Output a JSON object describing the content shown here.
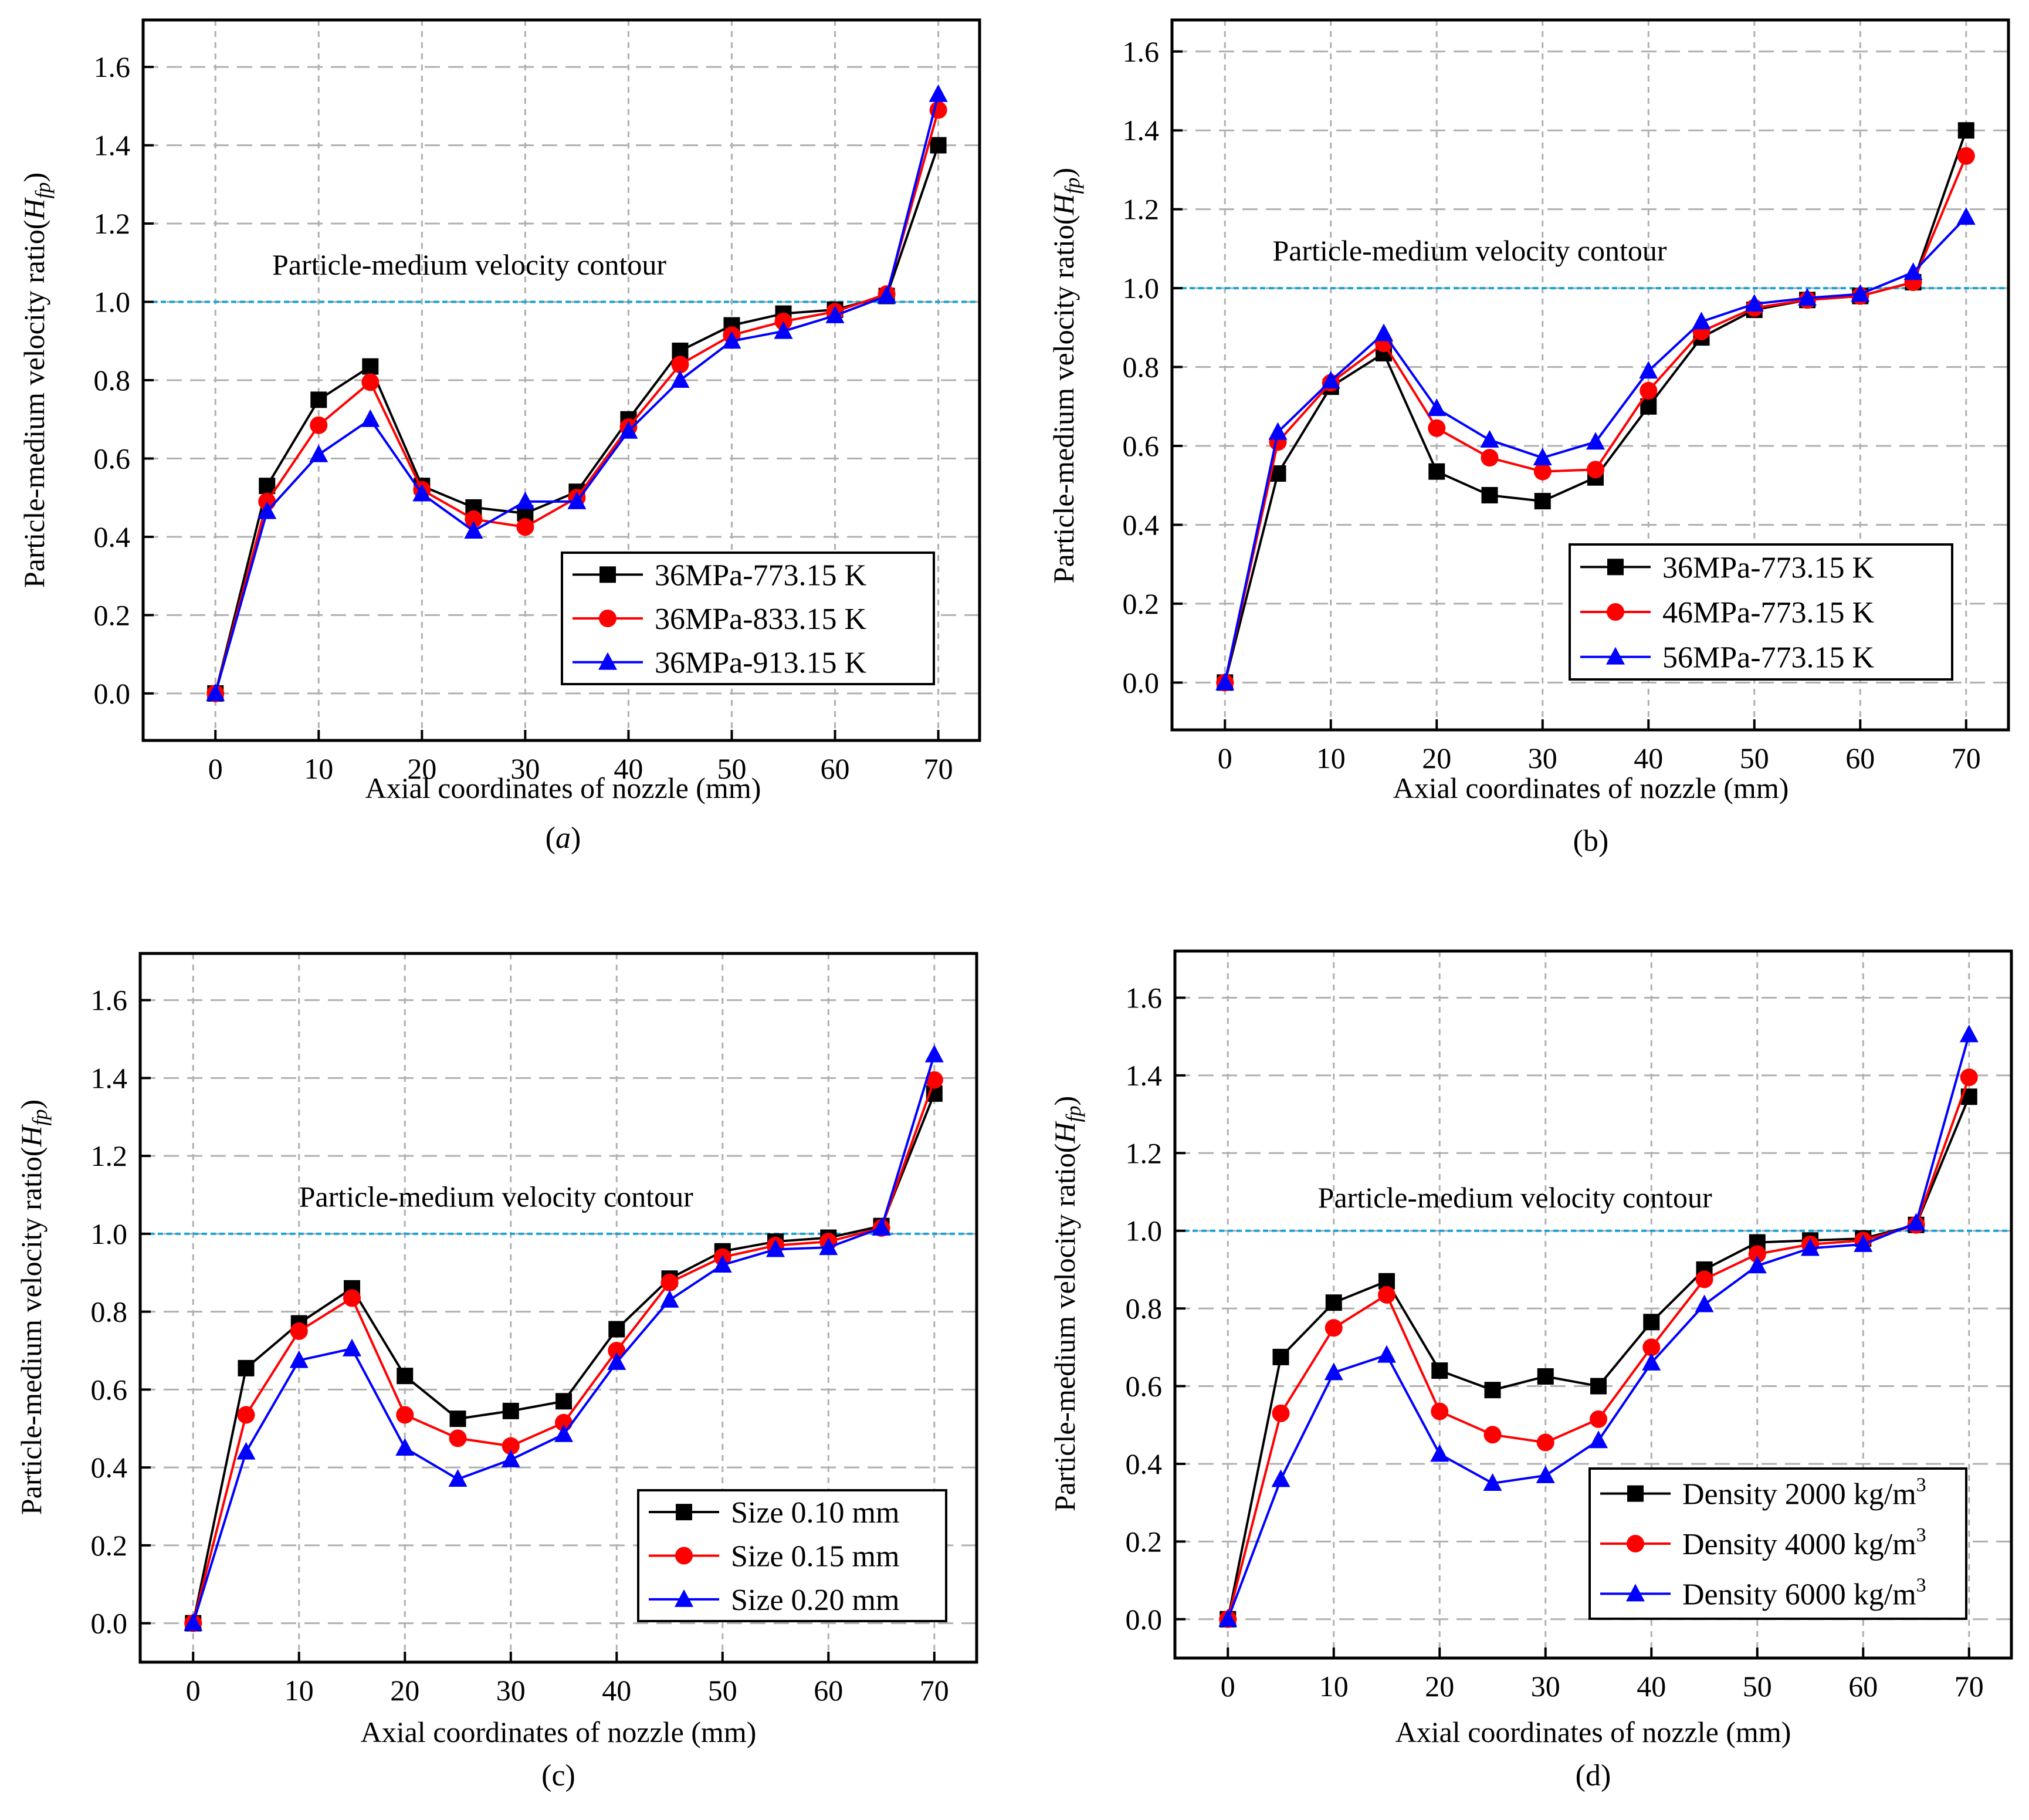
{
  "chart_data": [
    {
      "panel": "a",
      "type": "line",
      "caption": "(a)",
      "caption_italic": true,
      "xlabel": "Axial coordinates of nozzle (mm)",
      "ylabel": "Particle-medium velocity ratio",
      "ylabel_sym": "H",
      "ylabel_sub": "fp",
      "xlim": [
        -7,
        74
      ],
      "ylim": [
        -0.12,
        1.72
      ],
      "xticks": [
        0,
        10,
        20,
        30,
        40,
        50,
        60,
        70
      ],
      "yticks": [
        "0.0",
        "0.2",
        "0.4",
        "0.6",
        "0.8",
        "1.0",
        "1.2",
        "1.4",
        "1.6"
      ],
      "grid": true,
      "reference_line": {
        "y": 1.0,
        "color": "#1aa3d6",
        "label": "Particle-medium velocity contour",
        "label_pos": [
          5.5,
          1.07
        ]
      },
      "legend_location": "bottom-right",
      "x": [
        0,
        5,
        10,
        15,
        20,
        25,
        30,
        35,
        40,
        45,
        50,
        55,
        60,
        65,
        70
      ],
      "series": [
        {
          "name": "36MPa-773.15 K",
          "color": "#000000",
          "marker": "square",
          "values": [
            0,
            0.53,
            0.75,
            0.835,
            0.53,
            0.475,
            0.46,
            0.515,
            0.7,
            0.875,
            0.94,
            0.97,
            0.98,
            1.015,
            1.4
          ]
        },
        {
          "name": "36MPa-833.15 K",
          "color": "#ff0000",
          "marker": "circle",
          "values": [
            0,
            0.49,
            0.685,
            0.795,
            0.52,
            0.445,
            0.425,
            0.5,
            0.68,
            0.84,
            0.915,
            0.95,
            0.975,
            1.02,
            1.49
          ]
        },
        {
          "name": "36MPa-913.15 K",
          "color": "#0000ff",
          "marker": "triangle",
          "values": [
            0,
            0.465,
            0.61,
            0.7,
            0.51,
            0.415,
            0.49,
            0.49,
            0.67,
            0.8,
            0.9,
            0.925,
            0.965,
            1.015,
            1.53
          ]
        }
      ]
    },
    {
      "panel": "b",
      "type": "line",
      "caption": "(b)",
      "caption_italic": false,
      "xlabel": "Axial coordinates of nozzle (mm)",
      "ylabel": "Particle-medium velocity ratio",
      "ylabel_sym": "H",
      "ylabel_sub": "fp",
      "xlim": [
        -5,
        74
      ],
      "ylim": [
        -0.12,
        1.68
      ],
      "xticks": [
        0,
        10,
        20,
        30,
        40,
        50,
        60,
        70
      ],
      "yticks": [
        "0.0",
        "0.2",
        "0.4",
        "0.6",
        "0.8",
        "1.0",
        "1.2",
        "1.4",
        "1.6"
      ],
      "grid": true,
      "reference_line": {
        "y": 1.0,
        "color": "#1aa3d6",
        "label": "Particle-medium velocity contour",
        "label_pos": [
          4.5,
          1.07
        ]
      },
      "legend_location": "bottom-right",
      "x": [
        0,
        5,
        10,
        15,
        20,
        25,
        30,
        35,
        40,
        45,
        50,
        55,
        60,
        65,
        70
      ],
      "series": [
        {
          "name": "36MPa-773.15 K",
          "color": "#000000",
          "marker": "square",
          "values": [
            0,
            0.53,
            0.75,
            0.835,
            0.535,
            0.475,
            0.46,
            0.52,
            0.7,
            0.875,
            0.945,
            0.97,
            0.98,
            1.015,
            1.4
          ]
        },
        {
          "name": "46MPa-773.15 K",
          "color": "#ff0000",
          "marker": "circle",
          "values": [
            0,
            0.61,
            0.76,
            0.86,
            0.645,
            0.57,
            0.535,
            0.54,
            0.74,
            0.89,
            0.95,
            0.97,
            0.98,
            1.015,
            1.335
          ]
        },
        {
          "name": "56MPa-773.15 K",
          "color": "#0000ff",
          "marker": "triangle",
          "values": [
            0,
            0.635,
            0.765,
            0.885,
            0.695,
            0.615,
            0.57,
            0.61,
            0.79,
            0.915,
            0.96,
            0.975,
            0.985,
            1.04,
            1.18
          ]
        }
      ]
    },
    {
      "panel": "c",
      "type": "line",
      "caption": "(c)",
      "caption_italic": false,
      "xlabel": "Axial coordinates of nozzle (mm)",
      "ylabel": "Particle-medium velocity ratio",
      "ylabel_sym": "H",
      "ylabel_sub": "fp",
      "xlim": [
        -5,
        74
      ],
      "ylim": [
        -0.1,
        1.72
      ],
      "xticks": [
        0,
        10,
        20,
        30,
        40,
        50,
        60,
        70
      ],
      "yticks": [
        "0.0",
        "0.2",
        "0.4",
        "0.6",
        "0.8",
        "1.0",
        "1.2",
        "1.4",
        "1.6"
      ],
      "grid": true,
      "reference_line": {
        "y": 1.0,
        "color": "#1aa3d6",
        "label": "Particle-medium velocity contour",
        "label_pos": [
          10,
          1.07
        ]
      },
      "legend_location": "bottom-right",
      "x": [
        0,
        5,
        10,
        15,
        20,
        25,
        30,
        35,
        40,
        45,
        50,
        55,
        60,
        65,
        70
      ],
      "series": [
        {
          "name": "Size 0.10 mm",
          "color": "#000000",
          "marker": "square",
          "values": [
            0,
            0.655,
            0.77,
            0.86,
            0.635,
            0.525,
            0.545,
            0.57,
            0.755,
            0.885,
            0.955,
            0.98,
            0.99,
            1.02,
            1.36
          ]
        },
        {
          "name": "Size 0.15 mm",
          "color": "#ff0000",
          "marker": "circle",
          "values": [
            0,
            0.535,
            0.75,
            0.835,
            0.535,
            0.475,
            0.455,
            0.515,
            0.7,
            0.875,
            0.94,
            0.97,
            0.98,
            1.015,
            1.395
          ]
        },
        {
          "name": "Size 0.20 mm",
          "color": "#0000ff",
          "marker": "triangle",
          "values": [
            0,
            0.44,
            0.675,
            0.705,
            0.45,
            0.37,
            0.42,
            0.485,
            0.67,
            0.83,
            0.92,
            0.96,
            0.965,
            1.015,
            1.46
          ]
        }
      ]
    },
    {
      "panel": "d",
      "type": "line",
      "caption": "(d)",
      "caption_italic": false,
      "xlabel": "Axial coordinates of nozzle (mm)",
      "ylabel": "Particle-medium velocity ratio",
      "ylabel_sym": "H",
      "ylabel_sub": "fp",
      "xlim": [
        -5,
        74
      ],
      "ylim": [
        -0.1,
        1.72
      ],
      "xticks": [
        0,
        10,
        20,
        30,
        40,
        50,
        60,
        70
      ],
      "yticks": [
        "0.0",
        "0.2",
        "0.4",
        "0.6",
        "0.8",
        "1.0",
        "1.2",
        "1.4",
        "1.6"
      ],
      "grid": true,
      "reference_line": {
        "y": 1.0,
        "color": "#1aa3d6",
        "label": "Particle-medium velocity contour",
        "label_pos": [
          8.5,
          1.06
        ]
      },
      "legend_location": "bottom-right",
      "x": [
        0,
        5,
        10,
        15,
        20,
        25,
        30,
        35,
        40,
        45,
        50,
        55,
        60,
        65,
        70
      ],
      "series": [
        {
          "name": "Density 2000 kg/m",
          "name_sup": "3",
          "color": "#000000",
          "marker": "square",
          "values": [
            0,
            0.675,
            0.815,
            0.87,
            0.64,
            0.59,
            0.625,
            0.6,
            0.765,
            0.9,
            0.97,
            0.975,
            0.98,
            1.015,
            1.345
          ]
        },
        {
          "name": "Density 4000 kg/m",
          "name_sup": "3",
          "color": "#ff0000",
          "marker": "circle",
          "values": [
            0,
            0.53,
            0.75,
            0.835,
            0.535,
            0.475,
            0.455,
            0.515,
            0.7,
            0.875,
            0.94,
            0.965,
            0.975,
            1.015,
            1.395
          ]
        },
        {
          "name": "Density 6000 kg/m",
          "name_sup": "3",
          "color": "#0000ff",
          "marker": "triangle",
          "values": [
            0,
            0.36,
            0.635,
            0.68,
            0.425,
            0.35,
            0.37,
            0.46,
            0.66,
            0.81,
            0.91,
            0.955,
            0.965,
            1.02,
            1.505
          ]
        }
      ]
    }
  ]
}
